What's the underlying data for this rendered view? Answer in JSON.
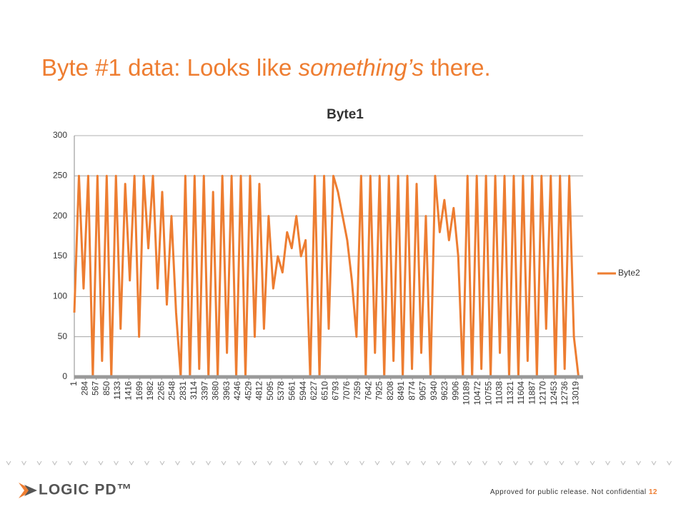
{
  "slide": {
    "title": {
      "before": "Byte #1 data: Looks like ",
      "emphasis": "something’s",
      "after": " there."
    }
  },
  "chart_data": {
    "type": "line",
    "title": "Byte1",
    "x": [
      1,
      121,
      241,
      361,
      481,
      601,
      721,
      841,
      961,
      1081,
      1201,
      1321,
      1441,
      1561,
      1681,
      1801,
      1921,
      2041,
      2161,
      2281,
      2401,
      2521,
      2641,
      2761,
      2881,
      3001,
      3121,
      3241,
      3361,
      3481,
      3601,
      3721,
      3841,
      3961,
      4081,
      4201,
      4321,
      4441,
      4561,
      4681,
      4801,
      4921,
      5041,
      5161,
      5281,
      5401,
      5521,
      5641,
      5761,
      5881,
      6001,
      6121,
      6241,
      6361,
      6481,
      6601,
      6721,
      6841,
      6961,
      7081,
      7201,
      7321,
      7441,
      7561,
      7681,
      7801,
      7921,
      8041,
      8161,
      8281,
      8401,
      8521,
      8641,
      8761,
      8881,
      9001,
      9121,
      9241,
      9361,
      9481,
      9601,
      9721,
      9841,
      9961,
      10081,
      10201,
      10321,
      10441,
      10561,
      10681,
      10801,
      10921,
      11041,
      11161,
      11281,
      11401,
      11521,
      11641,
      11761,
      11881,
      12001,
      12121,
      12241,
      12361,
      12481,
      12601,
      12721,
      12841,
      12961,
      13081
    ],
    "series": [
      {
        "name": "Byte2",
        "color": "#ed7d31",
        "values": [
          80,
          250,
          110,
          250,
          0,
          250,
          20,
          250,
          0,
          250,
          60,
          240,
          120,
          250,
          50,
          250,
          160,
          250,
          110,
          230,
          90,
          200,
          80,
          0,
          250,
          0,
          250,
          10,
          250,
          0,
          230,
          0,
          250,
          30,
          250,
          0,
          250,
          0,
          250,
          50,
          240,
          60,
          200,
          110,
          150,
          130,
          180,
          160,
          200,
          150,
          170,
          0,
          250,
          0,
          250,
          60,
          250,
          230,
          200,
          170,
          120,
          50,
          250,
          0,
          250,
          30,
          250,
          0,
          250,
          20,
          250,
          0,
          250,
          10,
          240,
          30,
          200,
          0,
          250,
          180,
          220,
          170,
          210,
          150,
          0,
          250,
          0,
          250,
          10,
          250,
          0,
          250,
          30,
          250,
          0,
          250,
          0,
          250,
          20,
          250,
          0,
          250,
          60,
          250,
          0,
          250,
          10,
          250,
          50,
          0
        ]
      }
    ],
    "xlim": [
      1,
      13200
    ],
    "xticks": [
      1,
      284,
      567,
      850,
      1133,
      1416,
      1699,
      1982,
      2265,
      2548,
      2831,
      3114,
      3397,
      3680,
      3963,
      4246,
      4529,
      4812,
      5095,
      5378,
      5661,
      5944,
      6227,
      6510,
      6793,
      7076,
      7359,
      7642,
      7925,
      8208,
      8491,
      8774,
      9057,
      9340,
      9623,
      9906,
      10189,
      10472,
      10755,
      11038,
      11321,
      11604,
      11887,
      12170,
      12453,
      12736,
      13019
    ],
    "ylim": [
      0,
      300
    ],
    "yticks": [
      0,
      50,
      100,
      150,
      200,
      250,
      300
    ],
    "grid": true,
    "legend": "right"
  },
  "footer": {
    "logo": "LOGIC PD™",
    "notice": "Approved for public release. Not confidential",
    "page": "12"
  }
}
